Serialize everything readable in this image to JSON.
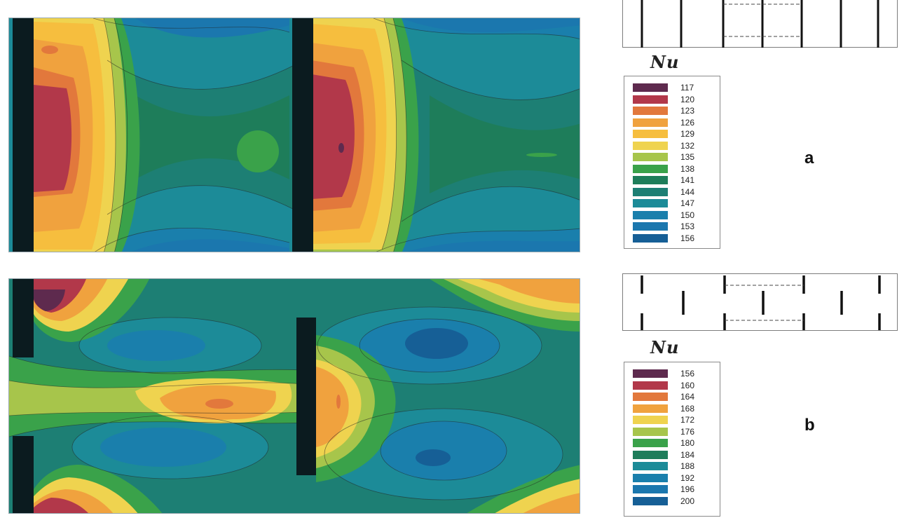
{
  "chart_data": [
    {
      "type": "heatmap",
      "panel": "a",
      "colorbar_title": "Nu",
      "levels": [
        117,
        120,
        123,
        126,
        129,
        132,
        135,
        138,
        141,
        144,
        147,
        150,
        153,
        156
      ],
      "colors": [
        "#5e2a4e",
        "#b2384a",
        "#e2783c",
        "#f0a23e",
        "#f6be3e",
        "#efd34f",
        "#a7c54b",
        "#3aa24a",
        "#1e7d5a",
        "#1d7f74",
        "#1c8b98",
        "#1a7fac",
        "#1b77ae",
        "#165f96"
      ],
      "legend_labels": [
        "117",
        "120",
        "123",
        "126",
        "129",
        "132",
        "135",
        "138",
        "141",
        "144",
        "147",
        "150",
        "153",
        "156"
      ]
    },
    {
      "type": "heatmap",
      "panel": "b",
      "colorbar_title": "Nu",
      "levels": [
        156,
        160,
        164,
        168,
        172,
        176,
        180,
        184,
        188,
        192,
        196,
        200
      ],
      "colors": [
        "#5e2a4e",
        "#b2384a",
        "#e2783c",
        "#f0a23e",
        "#efd34f",
        "#a7c54b",
        "#3aa24a",
        "#1e7d5a",
        "#1c8b98",
        "#1a7fac",
        "#1b77ae",
        "#165f96"
      ],
      "legend_labels": [
        "156",
        "160",
        "164",
        "168",
        "172",
        "176",
        "180",
        "184",
        "188",
        "192",
        "196",
        "200"
      ]
    }
  ],
  "panels": {
    "a": {
      "letter": "a",
      "nu_label": "Nu"
    },
    "b": {
      "letter": "b",
      "nu_label": "Nu"
    }
  }
}
